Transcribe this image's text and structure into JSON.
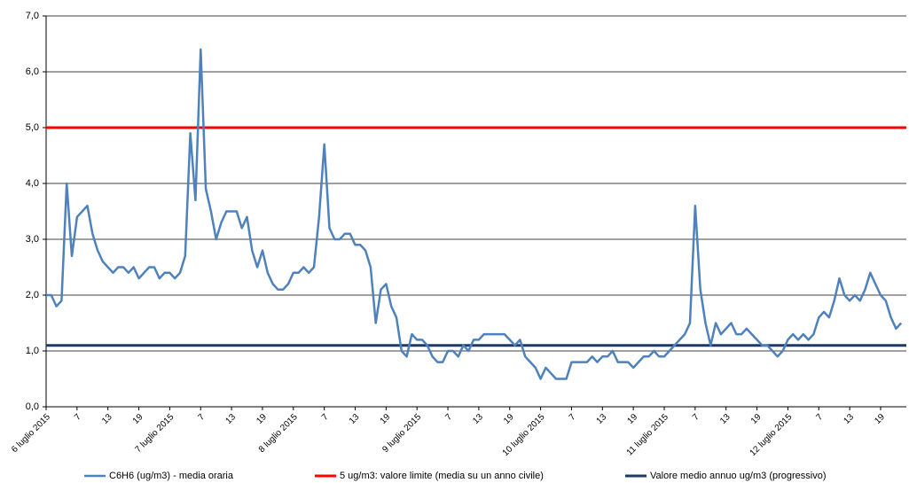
{
  "chart_data": {
    "type": "line",
    "categories": [
      "6 luglio 2015",
      null,
      null,
      null,
      null,
      null,
      "7",
      null,
      null,
      null,
      null,
      null,
      "13",
      null,
      null,
      null,
      null,
      null,
      "19",
      null,
      null,
      null,
      null,
      null,
      "7 luglio 2015",
      null,
      null,
      null,
      null,
      null,
      "7",
      null,
      null,
      null,
      null,
      null,
      "13",
      null,
      null,
      null,
      null,
      null,
      "19",
      null,
      null,
      null,
      null,
      null,
      "8 luglio 2015",
      null,
      null,
      null,
      null,
      null,
      "7",
      null,
      null,
      null,
      null,
      null,
      "13",
      null,
      null,
      null,
      null,
      null,
      "19",
      null,
      null,
      null,
      null,
      null,
      "9 luglio 2015",
      null,
      null,
      null,
      null,
      null,
      "7",
      null,
      null,
      null,
      null,
      null,
      "13",
      null,
      null,
      null,
      null,
      null,
      "19",
      null,
      null,
      null,
      null,
      null,
      "10 luglio 2015",
      null,
      null,
      null,
      null,
      null,
      "7",
      null,
      null,
      null,
      null,
      null,
      "13",
      null,
      null,
      null,
      null,
      null,
      "19",
      null,
      null,
      null,
      null,
      null,
      "11 luglio 2015",
      null,
      null,
      null,
      null,
      null,
      "7",
      null,
      null,
      null,
      null,
      null,
      "13",
      null,
      null,
      null,
      null,
      null,
      "19",
      null,
      null,
      null,
      null,
      null,
      "12 luglio 2015",
      null,
      null,
      null,
      null,
      null,
      "7",
      null,
      null,
      null,
      null,
      null,
      "13",
      null,
      null,
      null,
      null,
      null,
      "19",
      null,
      null,
      null,
      null
    ],
    "series": [
      {
        "name": "C6H6 (ug/m3)  - media oraria",
        "color": "#4f81bd",
        "values": [
          2.0,
          2.0,
          1.8,
          1.9,
          4.0,
          2.7,
          3.4,
          3.5,
          3.6,
          3.1,
          2.8,
          2.6,
          2.5,
          2.4,
          2.5,
          2.5,
          2.4,
          2.5,
          2.3,
          2.4,
          2.5,
          2.5,
          2.3,
          2.4,
          2.4,
          2.3,
          2.4,
          2.7,
          4.9,
          3.7,
          6.4,
          3.9,
          3.5,
          3.0,
          3.3,
          3.5,
          3.5,
          3.5,
          3.2,
          3.4,
          2.8,
          2.5,
          2.8,
          2.4,
          2.2,
          2.1,
          2.1,
          2.2,
          2.4,
          2.4,
          2.5,
          2.4,
          2.5,
          3.4,
          4.7,
          3.2,
          3.0,
          3.0,
          3.1,
          3.1,
          2.9,
          2.9,
          2.8,
          2.5,
          1.5,
          2.1,
          2.2,
          1.8,
          1.6,
          1.0,
          0.9,
          1.3,
          1.2,
          1.2,
          1.1,
          0.9,
          0.8,
          0.8,
          1.0,
          1.0,
          0.9,
          1.1,
          1.0,
          1.2,
          1.2,
          1.3,
          1.3,
          1.3,
          1.3,
          1.3,
          1.2,
          1.1,
          1.2,
          0.9,
          0.8,
          0.7,
          0.5,
          0.7,
          0.6,
          0.5,
          0.5,
          0.5,
          0.8,
          0.8,
          0.8,
          0.8,
          0.9,
          0.8,
          0.9,
          0.9,
          1.0,
          0.8,
          0.8,
          0.8,
          0.7,
          0.8,
          0.9,
          0.9,
          1.0,
          0.9,
          0.9,
          1.0,
          1.1,
          1.2,
          1.3,
          1.5,
          3.6,
          2.1,
          1.5,
          1.1,
          1.5,
          1.3,
          1.4,
          1.5,
          1.3,
          1.3,
          1.4,
          1.3,
          1.2,
          1.1,
          1.1,
          1.0,
          0.9,
          1.0,
          1.2,
          1.3,
          1.2,
          1.3,
          1.2,
          1.3,
          1.6,
          1.7,
          1.6,
          1.9,
          2.3,
          2.0,
          1.9,
          2.0,
          1.9,
          2.1,
          2.4,
          2.2,
          2.0,
          1.9,
          1.6,
          1.4,
          1.5
        ]
      }
    ],
    "hlines": [
      {
        "name": "5 ug/m3: valore limite (media su un anno civile)",
        "color": "#ff0000",
        "value": 5
      },
      {
        "name": "Valore medio annuo ug/m3 (progressivo)",
        "color": "#1f3864",
        "value": 1.1
      }
    ],
    "ylim": [
      0,
      7
    ],
    "yticks": [
      {
        "value": 0,
        "label": "0,0"
      },
      {
        "value": 1,
        "label": "1,0"
      },
      {
        "value": 2,
        "label": "2,0"
      },
      {
        "value": 3,
        "label": "3,0"
      },
      {
        "value": 4,
        "label": "4,0"
      },
      {
        "value": 5,
        "label": "5,0"
      },
      {
        "value": 6,
        "label": "6,0"
      },
      {
        "value": 7,
        "label": "7,0"
      }
    ],
    "grid": true
  }
}
